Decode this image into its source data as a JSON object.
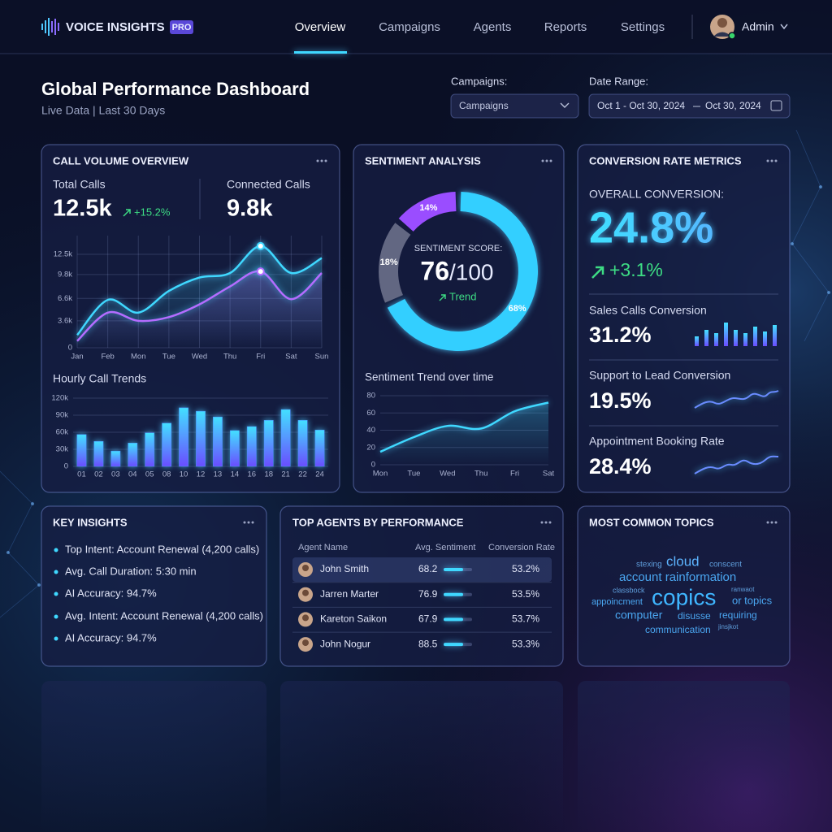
{
  "nav": {
    "brand": "VOICE INSIGHTS",
    "badge": "PRO",
    "tabs": [
      "Overview",
      "Campaigns",
      "Agents",
      "Reports",
      "Settings"
    ],
    "user": "Admin"
  },
  "header": {
    "title": "Global Performance Dashboard",
    "subtitle": "Live Data | Last 30 Days",
    "campaigns_label": "Campaigns:",
    "campaigns_select": "Campaigns",
    "date_label": "Date Range:",
    "date_from": "Oct 1 - Oct 30, 2024",
    "date_to": "Oct 30, 2024"
  },
  "call_volume": {
    "title": "CALL VOLUME OVERVIEW",
    "total_label": "Total Calls",
    "total": "12.5k",
    "total_change": "+15.2%",
    "connected_label": "Connected Calls",
    "connected": "9.8k",
    "trend_chart": {
      "type": "line",
      "categories": [
        "Jan",
        "Feb",
        "Mon",
        "Tue",
        "Wed",
        "Thu",
        "Fri",
        "Sat",
        "Sun"
      ],
      "ylim": [
        0,
        15000
      ],
      "yticks": [
        0,
        {
          "value": 3600,
          "label": "3.6k"
        },
        {
          "value": 6600,
          "label": "6.6k"
        },
        {
          "value": 9800,
          "label": "9.8k"
        },
        {
          "value": 12500,
          "label": "12.5k"
        }
      ],
      "grid": true,
      "series": [
        {
          "color": "#3fd8ff",
          "values": [
            1700,
            6400,
            4700,
            7600,
            9400,
            10000,
            13600,
            10000,
            12000
          ]
        },
        {
          "color": "#b46cff",
          "values": [
            900,
            4700,
            3600,
            4100,
            5800,
            8200,
            10200,
            6500,
            10000
          ]
        }
      ]
    },
    "hourly_title": "Hourly Call Trends",
    "hourly_chart": {
      "type": "bar",
      "categories": [
        "01",
        "02",
        "03",
        "04",
        "05",
        "08",
        "10",
        "12",
        "13",
        "14",
        "16",
        "18",
        "21",
        "22",
        "24"
      ],
      "values": [
        56000,
        44000,
        27000,
        41000,
        59000,
        76000,
        103000,
        97000,
        87000,
        63000,
        70000,
        81000,
        100000,
        81000,
        64000
      ],
      "ylim": [
        0,
        120000
      ],
      "yticks": [
        0,
        {
          "value": 30000,
          "label": "30k"
        },
        {
          "value": 60000,
          "label": "60k"
        },
        {
          "value": 90000,
          "label": "90k"
        },
        {
          "value": 120000,
          "label": "120k"
        }
      ],
      "grid": true,
      "color": "#4f8dff"
    }
  },
  "sentiment": {
    "title": "SENTIMENT ANALYSIS",
    "score_label": "SENTIMENT SCORE:",
    "score": "76",
    "score_max": "/100",
    "trend": "Trend",
    "donut": {
      "type": "donut",
      "values": [
        68,
        18,
        14
      ],
      "value_labels": [
        "68%",
        "18%",
        "14%"
      ],
      "colors": [
        "#33cfff",
        "#7d8299",
        "#9a4dff"
      ]
    },
    "trend_title": "Sentiment Trend over time",
    "trend_chart": {
      "type": "line",
      "categories": [
        "Mon",
        "Tue",
        "Wed",
        "Thu",
        "Fri",
        "Sat"
      ],
      "ylim": [
        0,
        80
      ],
      "yticks": [
        0,
        20,
        40,
        60,
        80
      ],
      "grid": true,
      "series": [
        {
          "color": "#3fd8ff",
          "values": [
            15,
            32,
            45,
            42,
            62,
            72
          ]
        }
      ]
    }
  },
  "conversion": {
    "title": "CONVERSION RATE METRICS",
    "overall_label": "OVERALL CONVERSION:",
    "overall": "24.8%",
    "overall_change": "+3.1%",
    "metrics": [
      {
        "label": "Sales Calls Conversion",
        "value": "31.2%"
      },
      {
        "label": "Support to Lead Conversion",
        "value": "19.5%"
      },
      {
        "label": "Appointment Booking Rate",
        "value": "28.4%"
      }
    ]
  },
  "insights": {
    "title": "KEY INSIGHTS",
    "items": [
      "Top Intent: Account Renewal (4,200 calls)",
      "Avg. Call Duration: 5:30 min",
      "AI Accuracy: 94.7%",
      "Avg. Intent: Account Renewal (4,200 calls)",
      "AI Accuracy: 94.7%"
    ]
  },
  "agents": {
    "title": "TOP AGENTS BY PERFORMANCE",
    "columns": [
      "Agent Name",
      "Avg. Sentiment",
      "Conversion Rate"
    ],
    "rows": [
      [
        "John Smith",
        "68.2",
        "53.2%"
      ],
      [
        "Jarren Marter",
        "76.9",
        "53.5%"
      ],
      [
        "Kareton Saikon",
        "67.9",
        "53.7%"
      ],
      [
        "John Nogur",
        "88.5",
        "53.3%"
      ]
    ]
  },
  "topics": {
    "title": "MOST COMMON TOPICS",
    "words": [
      "stexing",
      "cloud",
      "conscent",
      "account rainformation",
      "classbock",
      "ranwaot",
      "appoincment",
      "copics",
      "or topics",
      "computer",
      "disusse",
      "requiring",
      "communication",
      "jinsjkot"
    ]
  }
}
